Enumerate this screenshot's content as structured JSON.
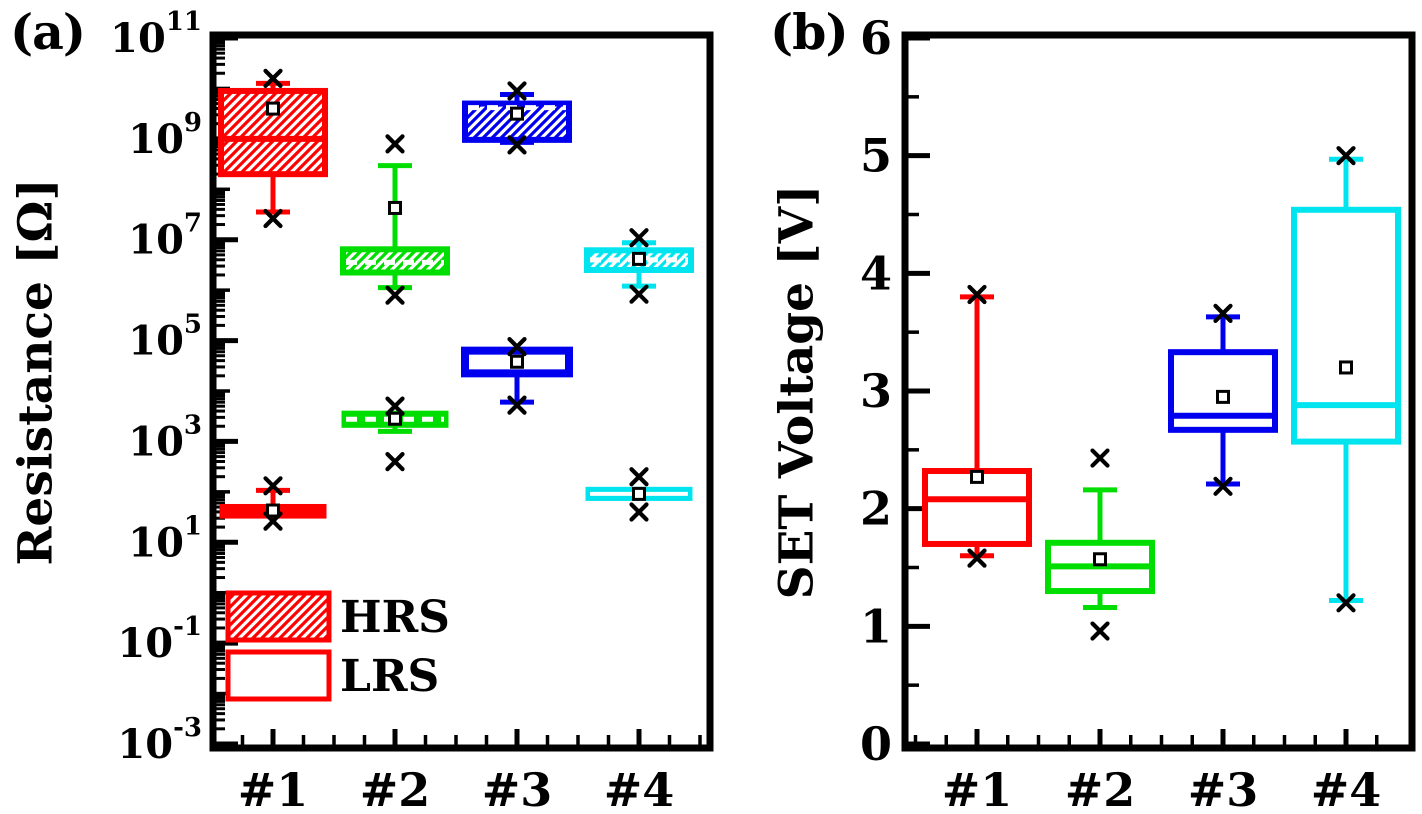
{
  "figure": {
    "background": "#ffffff",
    "text_color": "#000000"
  },
  "colors": {
    "red": "#ff0000",
    "green": "#00dd00",
    "blue": "#0000ee",
    "cyan": "#00e4f0"
  },
  "chart_data": [
    {
      "id": "a",
      "type": "box",
      "panel_label": "(a)",
      "ylabel": "Resistance [Ω]",
      "yscale": "log",
      "y_unit": "log10(ohm)",
      "ylim_exp": [
        -3,
        11
      ],
      "ytick_base": "10",
      "ytick_exponents": [
        11,
        9,
        7,
        5,
        3,
        1,
        -1,
        -3
      ],
      "categories": [
        "#1",
        "#2",
        "#3",
        "#4"
      ],
      "legend": [
        {
          "label": "HRS",
          "style": "hatched"
        },
        {
          "label": "LRS",
          "style": "open"
        }
      ],
      "boxes": [
        {
          "series": "HRS",
          "cat": 0,
          "color": "#ff0000",
          "fill": "hatch",
          "q1": 8.3,
          "median": 9.0,
          "median_style": "solid",
          "q3": 9.95,
          "mean": 9.6,
          "w_low": 7.55,
          "w_high": 10.1,
          "x_marks": [
            10.2,
            7.42
          ]
        },
        {
          "series": "HRS",
          "cat": 1,
          "color": "#00dd00",
          "fill": "hatch",
          "q1": 6.35,
          "median": 6.55,
          "median_style": "dash-white",
          "q3": 6.81,
          "mean": 7.63,
          "w_low": 6.05,
          "w_high": 8.47,
          "x_marks": [
            8.9,
            5.9
          ]
        },
        {
          "series": "HRS",
          "cat": 2,
          "color": "#0000ee",
          "fill": "hatch",
          "q1": 8.98,
          "median": 9.62,
          "median_style": "dash-white",
          "q3": 9.7,
          "mean": 9.5,
          "w_low": 8.93,
          "w_high": 9.88,
          "x_marks": [
            9.95,
            8.88
          ]
        },
        {
          "series": "HRS",
          "cat": 3,
          "color": "#00e4f0",
          "fill": "hatch",
          "q1": 6.4,
          "median": 6.6,
          "median_style": "dash-white",
          "q3": 6.79,
          "mean": 6.62,
          "w_low": 6.08,
          "w_high": 6.94,
          "x_marks": [
            7.04,
            5.92
          ]
        },
        {
          "series": "LRS",
          "cat": 0,
          "color": "#ff0000",
          "fill": "solid",
          "lw": 3,
          "q1": 1.5,
          "median": null,
          "q3": 1.73,
          "mean": 1.63,
          "w_low": null,
          "w_high": 2.03,
          "x_marks": [
            2.12,
            1.42
          ]
        },
        {
          "series": "LRS",
          "cat": 1,
          "color": "#00dd00",
          "fill": "solid",
          "lw": 3,
          "q1": 3.3,
          "median": 3.44,
          "median_style": "dash-white",
          "q3": 3.58,
          "mean": 3.45,
          "w_low": 3.2,
          "w_high": null,
          "x_marks": [
            3.7,
            2.6
          ]
        },
        {
          "series": "LRS",
          "cat": 2,
          "color": "#0000ee",
          "fill": "open",
          "lw": 8,
          "q1": 4.35,
          "median": null,
          "q3": 4.8,
          "mean": 4.58,
          "w_low": 3.78,
          "w_high": null,
          "x_marks": [
            4.88,
            3.72
          ]
        },
        {
          "series": "LRS",
          "cat": 3,
          "color": "#00e4f0",
          "fill": "solid",
          "lw": 3,
          "q1": 1.85,
          "median": 1.96,
          "median_style": "white",
          "q3": 2.07,
          "mean": 1.96,
          "w_low": null,
          "w_high": null,
          "x_marks": [
            2.3,
            1.6
          ]
        }
      ]
    },
    {
      "id": "b",
      "type": "box",
      "panel_label": "(b)",
      "ylabel": "SET Voltage [V]",
      "yscale": "linear",
      "y_unit": "V",
      "ylim": [
        0,
        6
      ],
      "yticks": [
        0,
        1,
        2,
        3,
        4,
        5,
        6
      ],
      "ytick_minor_step": 0.5,
      "categories": [
        "#1",
        "#2",
        "#3",
        "#4"
      ],
      "boxes": [
        {
          "series": "SET",
          "cat": 0,
          "color": "#ff0000",
          "fill": "open",
          "q1": 1.7,
          "median": 2.08,
          "median_style": "solid",
          "q3": 2.32,
          "mean": 2.27,
          "w_low": 1.6,
          "w_high": 3.8,
          "x_marks": [
            3.82,
            1.58
          ]
        },
        {
          "series": "SET",
          "cat": 1,
          "color": "#00dd00",
          "fill": "open",
          "q1": 1.3,
          "median": 1.51,
          "median_style": "solid",
          "q3": 1.71,
          "mean": 1.57,
          "w_low": 1.16,
          "w_high": 2.16,
          "x_marks": [
            2.43,
            0.96
          ]
        },
        {
          "series": "SET",
          "cat": 2,
          "color": "#0000ee",
          "fill": "open",
          "q1": 2.67,
          "median": 2.79,
          "median_style": "solid",
          "q3": 3.33,
          "mean": 2.95,
          "w_low": 2.21,
          "w_high": 3.63,
          "x_marks": [
            3.66,
            2.19
          ]
        },
        {
          "series": "SET",
          "cat": 3,
          "color": "#00e4f0",
          "fill": "open",
          "q1": 2.57,
          "median": 2.88,
          "median_style": "solid",
          "q3": 4.54,
          "mean": 3.2,
          "w_low": 1.22,
          "w_high": 4.97,
          "x_marks": [
            5.0,
            1.2
          ]
        }
      ]
    }
  ]
}
